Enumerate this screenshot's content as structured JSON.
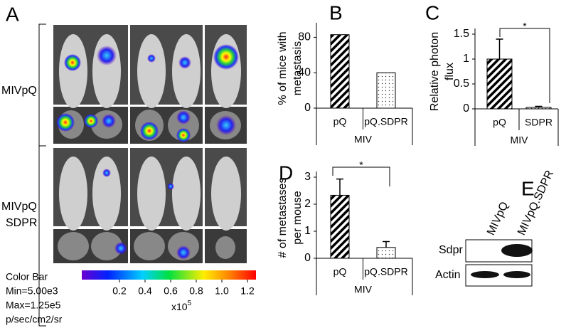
{
  "panel_a": {
    "letter": "A",
    "rows": [
      "MIVpQ",
      "MIVpQ",
      "SDPR"
    ],
    "colorbar": {
      "lines": [
        "Color Bar",
        "Min=5.00e3",
        "Max=1.25e5",
        "p/sec/cm2/sr"
      ],
      "ticks": [
        0.2,
        0.4,
        0.6,
        0.8,
        {
          "value": 1.0,
          "label": "1.0"
        },
        1.2
      ],
      "unit": "x10",
      "exponent": "5"
    }
  },
  "panel_e": {
    "letter": "E",
    "lanes": [
      "MIVpQ",
      "MIVpQ.SDPR"
    ],
    "bands": [
      "Sdpr",
      "Actin"
    ]
  },
  "chart_data": [
    {
      "type": "bar",
      "letter": "B",
      "ylabel": [
        "% of mice with",
        "metastasis"
      ],
      "categories": [
        "pQ",
        "pQ.SDPR"
      ],
      "group_label": "MIV",
      "values": [
        83,
        40
      ],
      "fills": [
        "hatch",
        "dots"
      ],
      "ylim": [
        0,
        90
      ],
      "yticks": [
        0,
        40,
        80
      ]
    },
    {
      "type": "bar",
      "letter": "C",
      "ylabel": [
        "Relative photon",
        "flux"
      ],
      "categories": [
        "pQ",
        "SDPR"
      ],
      "group_label": "MIV",
      "values": [
        1.0,
        0.03
      ],
      "errors": [
        0.4,
        0.02
      ],
      "fills": [
        "hatch",
        "dots"
      ],
      "ylim": [
        0,
        1.5
      ],
      "yticks": [
        0,
        0.5,
        1,
        1.5
      ],
      "significance": "*"
    },
    {
      "type": "bar",
      "letter": "D",
      "ylabel": [
        "# of metastases",
        "per mouse"
      ],
      "categories": [
        "pQ",
        "pQ.SDPR"
      ],
      "group_label": "MIV",
      "values": [
        2.33,
        0.4
      ],
      "errors": [
        0.6,
        0.22
      ],
      "fills": [
        "hatch",
        "dots"
      ],
      "ylim": [
        0,
        3
      ],
      "yticks": [
        0,
        1,
        2,
        3
      ],
      "significance": "*"
    }
  ]
}
